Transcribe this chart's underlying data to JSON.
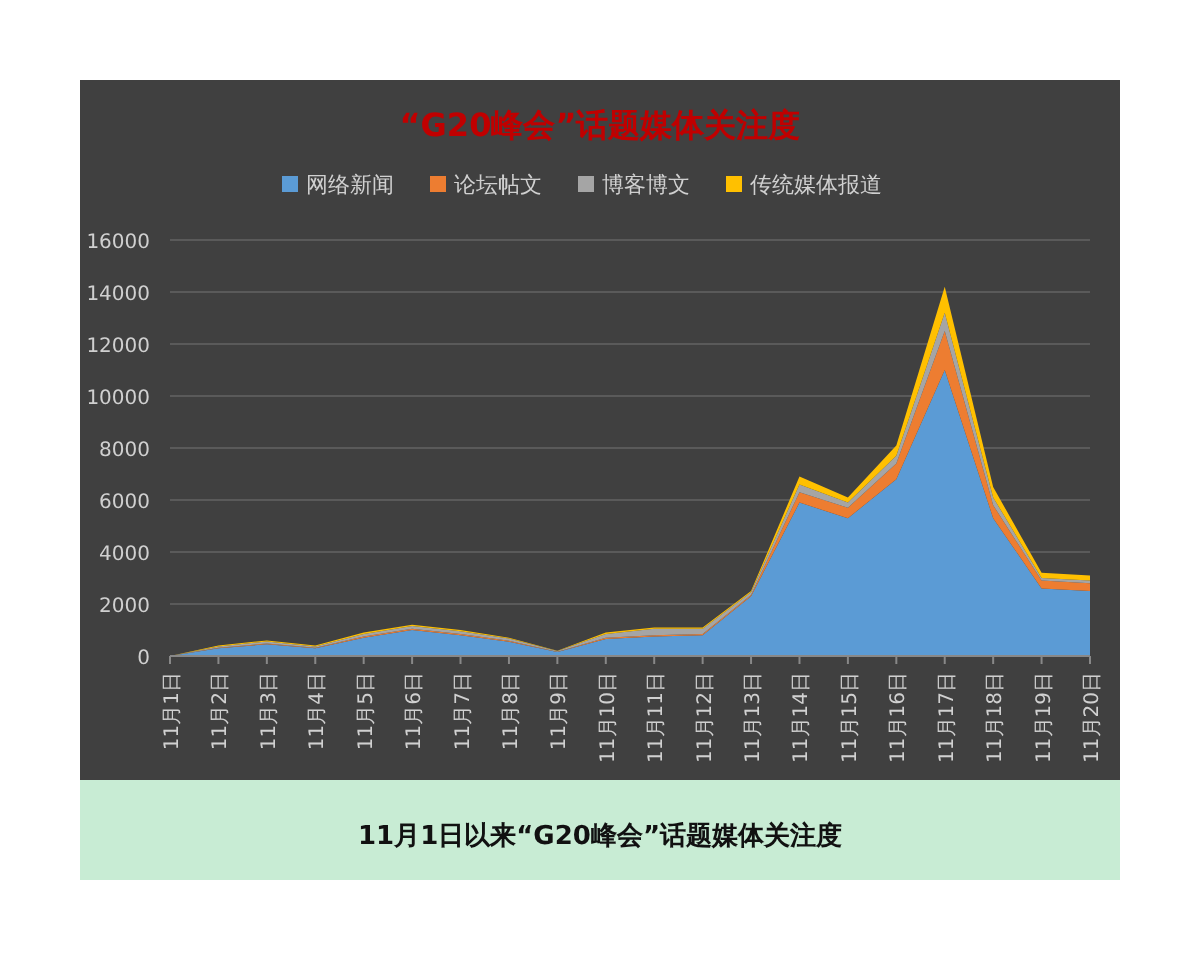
{
  "chart_data": {
    "type": "area",
    "stacked": true,
    "title": "“G20峰会”话题媒体关注度",
    "categories": [
      "11月1日",
      "11月2日",
      "11月3日",
      "11月4日",
      "11月5日",
      "11月6日",
      "11月7日",
      "11月8日",
      "11月9日",
      "11月10日",
      "11月11日",
      "11月12日",
      "11月13日",
      "11月14日",
      "11月15日",
      "11月16日",
      "11月17日",
      "11月18日",
      "11月19日",
      "11月20日"
    ],
    "series": [
      {
        "name": "网络新闻",
        "color": "#5b9bd5",
        "values": [
          0,
          300,
          450,
          300,
          700,
          1000,
          800,
          550,
          150,
          650,
          750,
          800,
          2300,
          5900,
          5300,
          6800,
          11000,
          5300,
          2600,
          2500
        ]
      },
      {
        "name": "论坛帖文",
        "color": "#ed7d31",
        "values": [
          0,
          20,
          30,
          20,
          50,
          50,
          50,
          40,
          10,
          50,
          50,
          50,
          50,
          400,
          400,
          600,
          1500,
          500,
          300,
          300
        ]
      },
      {
        "name": "博客博文",
        "color": "#a5a5a5",
        "values": [
          0,
          50,
          80,
          50,
          100,
          100,
          100,
          80,
          30,
          150,
          250,
          200,
          100,
          300,
          200,
          300,
          700,
          300,
          100,
          100
        ]
      },
      {
        "name": "传统媒体报道",
        "color": "#ffc000",
        "values": [
          0,
          30,
          40,
          30,
          50,
          50,
          50,
          30,
          10,
          50,
          50,
          50,
          50,
          300,
          200,
          400,
          1000,
          400,
          200,
          200
        ]
      }
    ],
    "ylim": [
      0,
      16000
    ],
    "yticks": [
      0,
      2000,
      4000,
      6000,
      8000,
      10000,
      12000,
      14000,
      16000
    ],
    "grid": "y",
    "legend": "top",
    "annotations": [
      "11月1日以来“G20峰会”话题媒体关注度"
    ]
  }
}
